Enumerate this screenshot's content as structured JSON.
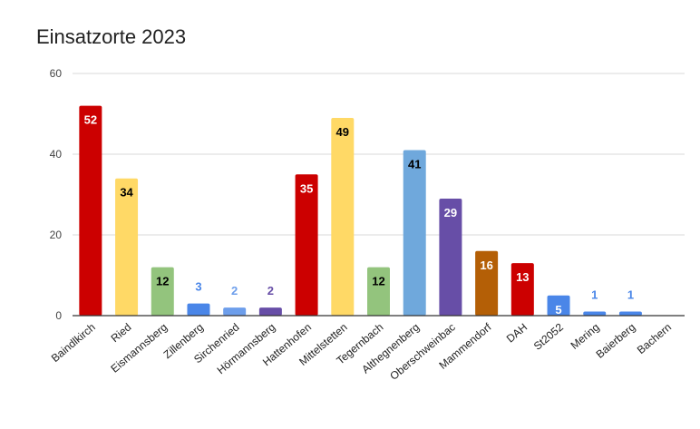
{
  "chart_data": {
    "type": "bar",
    "title": "Einsatzorte 2023",
    "xlabel": "",
    "ylabel": "",
    "ylim": [
      0,
      60
    ],
    "yticks": [
      0,
      20,
      40,
      60
    ],
    "grid": true,
    "categories": [
      "Baindlkirch",
      "Ried",
      "Eismannsberg",
      "Zillenberg",
      "Sirchenried",
      "Hörmannsberg",
      "Hattenhofen",
      "Mittelstetten",
      "Tegernbach",
      "Althegnenberg",
      "Oberschweinbac",
      "Mammendorf",
      "DAH",
      "St2052",
      "Mering",
      "Baierberg",
      "Bachern"
    ],
    "values": [
      52,
      34,
      12,
      3,
      2,
      2,
      35,
      49,
      12,
      41,
      29,
      16,
      13,
      5,
      1,
      1,
      0
    ],
    "value_labels": [
      "52",
      "34",
      "12",
      "3",
      "2",
      "2",
      "35",
      "49",
      "12",
      "41",
      "29",
      "16",
      "13",
      "5",
      "1",
      "1",
      ""
    ],
    "bar_colors": [
      "#cc0000",
      "#ffd966",
      "#93c47d",
      "#4a86e8",
      "#6d9eeb",
      "#674ea7",
      "#cc0000",
      "#ffd966",
      "#93c47d",
      "#6fa8dc",
      "#674ea7",
      "#b45f06",
      "#cc0000",
      "#4a86e8",
      "#4a86e8",
      "#4a86e8",
      "#4a86e8"
    ],
    "label_colors": [
      "#ffffff",
      "#000000",
      "#000000",
      "#4a86e8",
      "#6d9eeb",
      "#674ea7",
      "#ffffff",
      "#000000",
      "#000000",
      "#000000",
      "#ffffff",
      "#ffffff",
      "#ffffff",
      "#ffffff",
      "#4a86e8",
      "#4a86e8",
      "#4a86e8"
    ],
    "label_position": [
      "inside",
      "inside",
      "inside",
      "above",
      "above",
      "above",
      "inside",
      "inside",
      "inside",
      "inside",
      "inside",
      "inside",
      "inside",
      "inside",
      "above",
      "above",
      "above"
    ]
  }
}
